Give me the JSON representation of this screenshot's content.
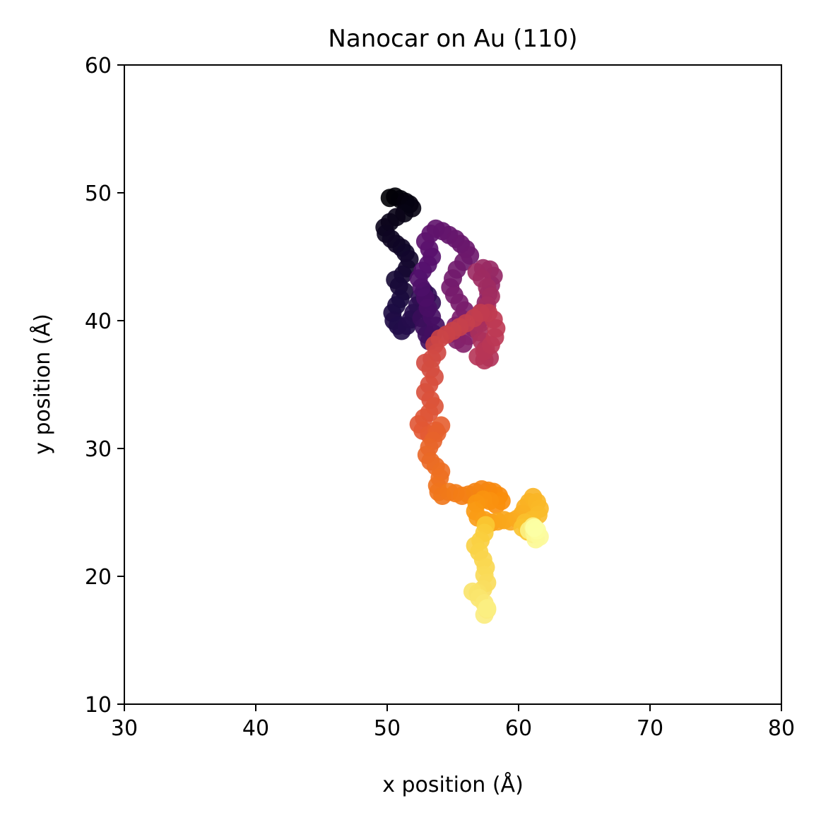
{
  "chart_data": {
    "type": "scatter",
    "title": "Nanocar on Au (110)",
    "xlabel": "x position (Å)",
    "ylabel": "y position (Å)",
    "xlim": [
      30,
      80
    ],
    "ylim": [
      10,
      60
    ],
    "xticks": [
      30,
      40,
      50,
      60,
      70,
      80
    ],
    "yticks": [
      10,
      20,
      30,
      40,
      50,
      60
    ],
    "grid": false,
    "colormap": "inferno",
    "color_encodes": "time order along trajectory",
    "series": [
      {
        "points": [
          [
            50.2,
            49.6
          ],
          [
            50.6,
            49.7
          ],
          [
            51.0,
            49.5
          ],
          [
            51.4,
            49.3
          ],
          [
            51.7,
            49.1
          ],
          [
            51.9,
            48.8
          ],
          [
            51.3,
            48.4
          ],
          [
            50.7,
            48.1
          ],
          [
            50.2,
            47.7
          ],
          [
            49.8,
            47.3
          ],
          [
            49.9,
            46.8
          ],
          [
            50.3,
            46.4
          ],
          [
            50.7,
            46.0
          ],
          [
            51.1,
            45.7
          ],
          [
            51.4,
            45.3
          ],
          [
            51.7,
            44.8
          ],
          [
            51.5,
            44.1
          ],
          [
            51.2,
            43.6
          ],
          [
            50.6,
            43.2
          ],
          [
            50.9,
            42.7
          ],
          [
            51.3,
            42.3
          ],
          [
            51.0,
            41.7
          ],
          [
            50.7,
            41.2
          ],
          [
            50.4,
            40.6
          ],
          [
            50.5,
            40.0
          ],
          [
            50.8,
            39.6
          ],
          [
            51.1,
            39.2
          ],
          [
            51.5,
            39.6
          ],
          [
            51.8,
            40.1
          ],
          [
            52.0,
            40.6
          ],
          [
            52.3,
            41.2
          ],
          [
            52.5,
            41.8
          ],
          [
            52.8,
            42.3
          ],
          [
            53.1,
            42.0
          ],
          [
            53.4,
            41.4
          ],
          [
            53.0,
            40.8
          ],
          [
            52.6,
            40.2
          ],
          [
            52.8,
            39.5
          ],
          [
            53.0,
            38.9
          ],
          [
            53.2,
            38.4
          ],
          [
            53.5,
            39.0
          ],
          [
            53.7,
            39.6
          ],
          [
            53.4,
            40.3
          ],
          [
            53.1,
            41.0
          ],
          [
            52.9,
            41.8
          ],
          [
            52.6,
            42.6
          ],
          [
            52.4,
            43.3
          ],
          [
            52.7,
            43.9
          ],
          [
            53.1,
            44.4
          ],
          [
            53.4,
            45.0
          ],
          [
            53.2,
            45.6
          ],
          [
            52.9,
            46.2
          ],
          [
            53.3,
            46.8
          ],
          [
            53.7,
            47.2
          ],
          [
            54.2,
            47.0
          ],
          [
            54.7,
            46.7
          ],
          [
            55.2,
            46.4
          ],
          [
            55.6,
            46.0
          ],
          [
            56.0,
            45.6
          ],
          [
            56.3,
            45.1
          ],
          [
            55.8,
            44.6
          ],
          [
            55.3,
            44.0
          ],
          [
            55.0,
            43.3
          ],
          [
            54.8,
            42.6
          ],
          [
            55.1,
            42.0
          ],
          [
            55.5,
            41.4
          ],
          [
            55.9,
            40.8
          ],
          [
            55.6,
            40.2
          ],
          [
            55.2,
            39.6
          ],
          [
            54.9,
            39.0
          ],
          [
            55.3,
            38.5
          ],
          [
            55.8,
            38.2
          ],
          [
            56.2,
            38.8
          ],
          [
            56.6,
            39.4
          ],
          [
            57.0,
            40.0
          ],
          [
            57.2,
            40.7
          ],
          [
            57.5,
            41.4
          ],
          [
            57.7,
            42.1
          ],
          [
            57.9,
            42.8
          ],
          [
            58.1,
            43.5
          ],
          [
            57.8,
            44.0
          ],
          [
            57.3,
            44.1
          ],
          [
            56.8,
            43.8
          ],
          [
            57.2,
            43.3
          ],
          [
            57.6,
            42.6
          ],
          [
            57.9,
            41.9
          ],
          [
            57.6,
            41.2
          ],
          [
            57.3,
            40.5
          ],
          [
            57.1,
            39.8
          ],
          [
            57.0,
            39.1
          ],
          [
            57.2,
            38.4
          ],
          [
            57.5,
            37.8
          ],
          [
            57.8,
            37.1
          ],
          [
            57.4,
            36.9
          ],
          [
            56.9,
            37.2
          ],
          [
            57.4,
            37.6
          ],
          [
            57.9,
            38.1
          ],
          [
            58.2,
            38.7
          ],
          [
            58.3,
            39.4
          ],
          [
            58.1,
            40.1
          ],
          [
            57.7,
            40.6
          ],
          [
            57.1,
            40.6
          ],
          [
            56.6,
            40.2
          ],
          [
            56.0,
            39.8
          ],
          [
            55.5,
            39.5
          ],
          [
            55.0,
            39.2
          ],
          [
            54.5,
            38.9
          ],
          [
            54.0,
            38.6
          ],
          [
            53.6,
            38.1
          ],
          [
            53.8,
            37.5
          ],
          [
            53.4,
            37.0
          ],
          [
            52.9,
            36.7
          ],
          [
            53.3,
            36.2
          ],
          [
            53.6,
            35.6
          ],
          [
            53.2,
            35.0
          ],
          [
            52.9,
            34.4
          ],
          [
            53.3,
            33.8
          ],
          [
            53.6,
            33.3
          ],
          [
            53.2,
            32.8
          ],
          [
            52.8,
            32.4
          ],
          [
            52.4,
            31.9
          ],
          [
            52.7,
            31.4
          ],
          [
            53.2,
            31.1
          ],
          [
            53.7,
            31.4
          ],
          [
            54.1,
            31.8
          ],
          [
            53.8,
            31.2
          ],
          [
            53.5,
            30.6
          ],
          [
            53.2,
            30.1
          ],
          [
            53.0,
            29.5
          ],
          [
            53.3,
            29.0
          ],
          [
            53.7,
            28.6
          ],
          [
            54.1,
            28.2
          ],
          [
            54.0,
            27.7
          ],
          [
            53.8,
            27.1
          ],
          [
            53.9,
            26.6
          ],
          [
            54.2,
            26.3
          ],
          [
            54.7,
            26.6
          ],
          [
            55.2,
            26.5
          ],
          [
            55.7,
            26.3
          ],
          [
            56.2,
            26.4
          ],
          [
            56.7,
            26.6
          ],
          [
            57.2,
            26.8
          ],
          [
            57.7,
            26.7
          ],
          [
            58.1,
            26.6
          ],
          [
            58.5,
            26.3
          ],
          [
            58.7,
            25.9
          ],
          [
            58.3,
            25.6
          ],
          [
            57.8,
            25.9
          ],
          [
            57.3,
            26.0
          ],
          [
            56.8,
            25.7
          ],
          [
            56.7,
            25.1
          ],
          [
            56.9,
            24.6
          ],
          [
            57.4,
            24.4
          ],
          [
            57.9,
            24.2
          ],
          [
            58.4,
            24.3
          ],
          [
            58.9,
            24.4
          ],
          [
            59.4,
            24.3
          ],
          [
            59.9,
            24.5
          ],
          [
            60.3,
            24.9
          ],
          [
            60.5,
            25.4
          ],
          [
            60.8,
            25.8
          ],
          [
            61.1,
            26.2
          ],
          [
            61.4,
            25.8
          ],
          [
            61.6,
            25.3
          ],
          [
            61.5,
            24.8
          ],
          [
            61.0,
            24.4
          ],
          [
            60.5,
            24.2
          ],
          [
            60.3,
            23.8
          ],
          [
            60.7,
            23.5
          ],
          [
            61.1,
            23.3
          ],
          [
            57.5,
            24.0
          ],
          [
            57.4,
            23.4
          ],
          [
            57.1,
            22.8
          ],
          [
            56.7,
            22.4
          ],
          [
            57.0,
            21.9
          ],
          [
            57.3,
            21.3
          ],
          [
            57.5,
            20.7
          ],
          [
            57.4,
            20.1
          ],
          [
            57.6,
            19.5
          ],
          [
            57.3,
            19.0
          ],
          [
            56.9,
            18.7
          ],
          [
            56.5,
            18.8
          ],
          [
            57.0,
            18.3
          ],
          [
            57.4,
            17.9
          ],
          [
            57.6,
            17.4
          ],
          [
            57.4,
            17.0
          ],
          [
            57.6,
            17.5
          ],
          [
            60.8,
            23.6
          ],
          [
            61.1,
            23.9
          ],
          [
            61.2,
            23.4
          ],
          [
            61.3,
            22.9
          ],
          [
            61.6,
            23.1
          ],
          [
            61.4,
            23.6
          ],
          [
            61.2,
            23.8
          ]
        ]
      }
    ]
  }
}
